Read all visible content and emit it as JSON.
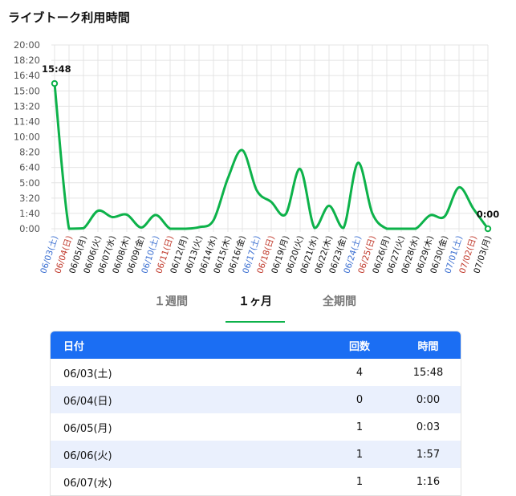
{
  "page_title": "ライブトーク利用時間",
  "chart_data": {
    "type": "line",
    "y_ticks": [
      "20:00",
      "18:20",
      "16:40",
      "15:00",
      "13:20",
      "11:40",
      "10:00",
      "8:20",
      "6:40",
      "5:00",
      "3:20",
      "1:40",
      "0:00"
    ],
    "ylim_minutes": [
      0,
      1200
    ],
    "x": [
      {
        "label": "06/03(土)",
        "kind": "sat"
      },
      {
        "label": "06/04(日)",
        "kind": "sun"
      },
      {
        "label": "06/05(月)",
        "kind": "weekday"
      },
      {
        "label": "06/06(火)",
        "kind": "weekday"
      },
      {
        "label": "06/07(水)",
        "kind": "weekday"
      },
      {
        "label": "06/08(木)",
        "kind": "weekday"
      },
      {
        "label": "06/09(金)",
        "kind": "weekday"
      },
      {
        "label": "06/10(土)",
        "kind": "sat"
      },
      {
        "label": "06/11(日)",
        "kind": "sun"
      },
      {
        "label": "06/12(月)",
        "kind": "weekday"
      },
      {
        "label": "06/13(火)",
        "kind": "weekday"
      },
      {
        "label": "06/14(水)",
        "kind": "weekday"
      },
      {
        "label": "06/15(木)",
        "kind": "weekday"
      },
      {
        "label": "06/16(金)",
        "kind": "weekday"
      },
      {
        "label": "06/17(土)",
        "kind": "sat"
      },
      {
        "label": "06/18(日)",
        "kind": "sun"
      },
      {
        "label": "06/19(月)",
        "kind": "weekday"
      },
      {
        "label": "06/20(火)",
        "kind": "weekday"
      },
      {
        "label": "06/21(水)",
        "kind": "weekday"
      },
      {
        "label": "06/22(木)",
        "kind": "weekday"
      },
      {
        "label": "06/23(金)",
        "kind": "weekday"
      },
      {
        "label": "06/24(土)",
        "kind": "sat"
      },
      {
        "label": "06/25(日)",
        "kind": "sun"
      },
      {
        "label": "06/26(月)",
        "kind": "weekday"
      },
      {
        "label": "06/27(火)",
        "kind": "weekday"
      },
      {
        "label": "06/28(水)",
        "kind": "weekday"
      },
      {
        "label": "06/29(木)",
        "kind": "weekday"
      },
      {
        "label": "06/30(金)",
        "kind": "weekday"
      },
      {
        "label": "07/01(土)",
        "kind": "sat"
      },
      {
        "label": "07/02(日)",
        "kind": "sun"
      },
      {
        "label": "07/03(月)",
        "kind": "weekday"
      }
    ],
    "values_minutes": [
      948,
      0,
      3,
      117,
      76,
      92,
      8,
      90,
      0,
      0,
      10,
      55,
      330,
      513,
      250,
      175,
      95,
      390,
      5,
      150,
      5,
      430,
      100,
      0,
      0,
      0,
      88,
      80,
      270,
      130,
      0
    ],
    "annotations": [
      {
        "index": 0,
        "text": "15:48"
      },
      {
        "index": 30,
        "text": "0:00"
      }
    ],
    "colors": {
      "line": "#0db24a",
      "grid": "#e4e4e4",
      "sat": "#3b6fd1",
      "sun": "#c0392b",
      "weekday": "#111111"
    }
  },
  "tabs": [
    {
      "label": "１週間",
      "active": false
    },
    {
      "label": "１ヶ月",
      "active": true
    },
    {
      "label": "全期間",
      "active": false
    }
  ],
  "table": {
    "headers": {
      "date": "日付",
      "count": "回数",
      "time": "時間"
    },
    "rows": [
      {
        "date": "06/03(土)",
        "count": "4",
        "time": "15:48"
      },
      {
        "date": "06/04(日)",
        "count": "0",
        "time": "0:00"
      },
      {
        "date": "06/05(月)",
        "count": "1",
        "time": "0:03"
      },
      {
        "date": "06/06(火)",
        "count": "1",
        "time": "1:57"
      },
      {
        "date": "06/07(水)",
        "count": "1",
        "time": "1:16"
      }
    ]
  }
}
